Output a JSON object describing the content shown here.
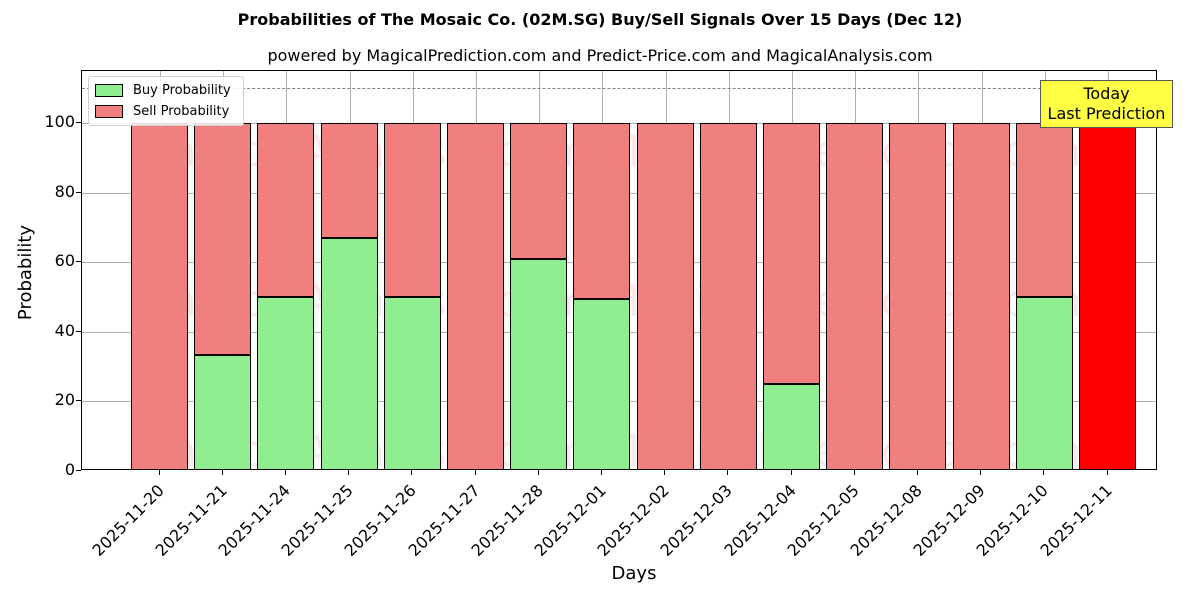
{
  "chart_data": {
    "type": "bar",
    "stacked": true,
    "title": "Probabilities of The Mosaic Co. (02M.SG) Buy/Sell Signals Over 15 Days (Dec 12)",
    "subtitle": "powered by MagicalPrediction.com and Predict-Price.com and MagicalAnalysis.com",
    "xlabel": "Days",
    "ylabel": "Probability",
    "ylim": [
      0,
      115
    ],
    "yticks": [
      0,
      20,
      40,
      60,
      80,
      100
    ],
    "grid": true,
    "legend_position": "upper left",
    "reference_line": {
      "y": 110,
      "style": "dashed",
      "color": "#808080"
    },
    "categories": [
      "2025-11-20",
      "2025-11-21",
      "2025-11-24",
      "2025-11-25",
      "2025-11-26",
      "2025-11-27",
      "2025-11-28",
      "2025-12-01",
      "2025-12-02",
      "2025-12-03",
      "2025-12-04",
      "2025-12-05",
      "2025-12-08",
      "2025-12-09",
      "2025-12-10",
      "2025-12-11"
    ],
    "series": [
      {
        "name": "Buy Probability",
        "color": "#90ee90",
        "values": [
          0,
          33.3,
          50,
          67,
          50,
          0,
          61,
          49.5,
          0,
          0,
          25,
          0,
          0,
          0,
          50,
          0
        ]
      },
      {
        "name": "Sell Probability",
        "color": "#f08080",
        "values": [
          100,
          66.7,
          50,
          33,
          50,
          100,
          39,
          50.5,
          100,
          100,
          75,
          100,
          100,
          100,
          50,
          100
        ]
      }
    ],
    "highlight": {
      "index": 15,
      "color": "#ff0000",
      "label": "Today\nLast Prediction"
    },
    "annotation": {
      "line1": "Today",
      "line2": "Last Prediction",
      "background": "#ffff44"
    },
    "watermarks": [
      "MagicalAnalysis.com",
      "MagicalPrediction.com"
    ]
  }
}
